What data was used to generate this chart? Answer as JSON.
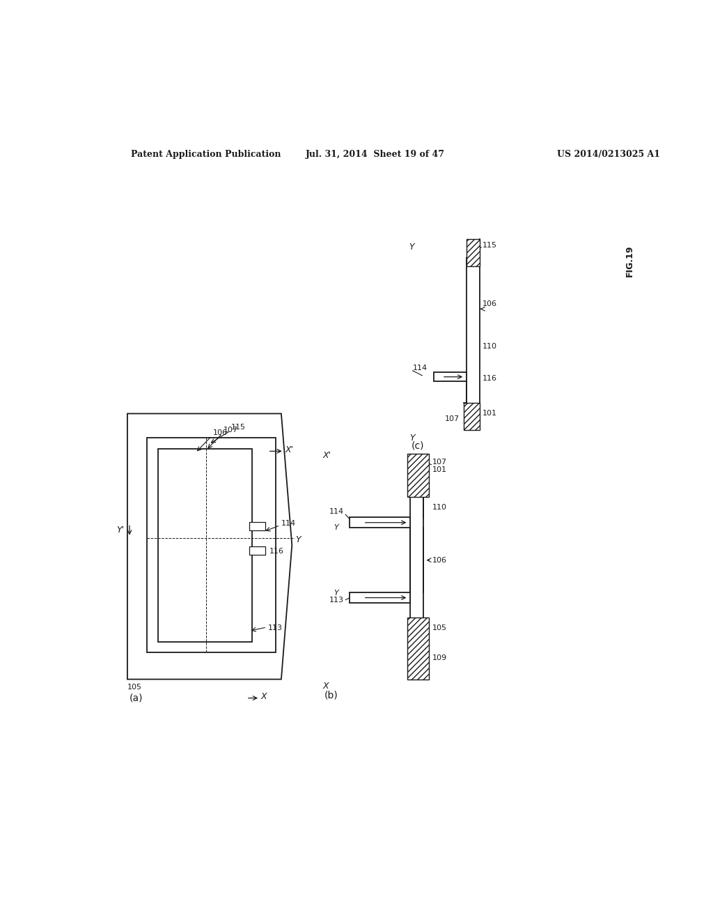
{
  "header_left": "Patent Application Publication",
  "header_mid": "Jul. 31, 2014  Sheet 19 of 47",
  "header_right": "US 2014/0213025 A1",
  "fig_label": "FIG.19",
  "background_color": "#ffffff",
  "line_color": "#1a1a1a"
}
